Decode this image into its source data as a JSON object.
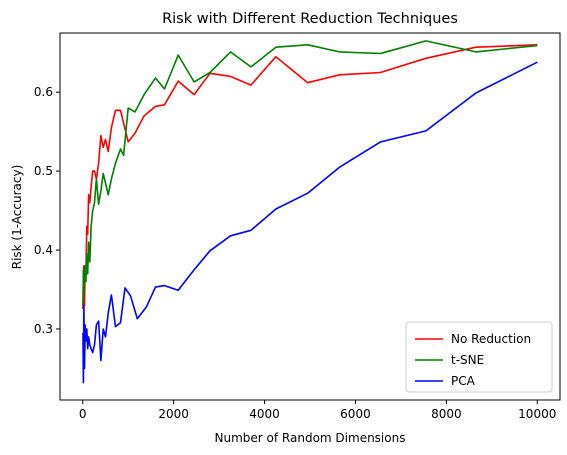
{
  "chart_data": {
    "type": "line",
    "title": "Risk with Different Reduction Techniques",
    "xlabel": "Number of Random Dimensions",
    "ylabel": "Risk (1-Accuracy)",
    "xlim": [
      -500,
      10500
    ],
    "ylim": [
      0.21,
      0.675
    ],
    "xticks": [
      0,
      2000,
      4000,
      6000,
      8000,
      10000
    ],
    "xtick_labels": [
      "0",
      "2000",
      "4000",
      "6000",
      "8000",
      "10000"
    ],
    "yticks": [
      0.3,
      0.4,
      0.5,
      0.6
    ],
    "ytick_labels": [
      "0.3",
      "0.4",
      "0.5",
      "0.6"
    ],
    "grid": false,
    "legend_position": "lower-right",
    "series": [
      {
        "name": "No Reduction",
        "color": "#ff0000",
        "points": [
          [
            5,
            0.325
          ],
          [
            15,
            0.37
          ],
          [
            25,
            0.38
          ],
          [
            40,
            0.33
          ],
          [
            55,
            0.38
          ],
          [
            70,
            0.37
          ],
          [
            90,
            0.43
          ],
          [
            110,
            0.42
          ],
          [
            130,
            0.47
          ],
          [
            155,
            0.46
          ],
          [
            185,
            0.48
          ],
          [
            220,
            0.5
          ],
          [
            260,
            0.5
          ],
          [
            300,
            0.49
          ],
          [
            350,
            0.51
          ],
          [
            400,
            0.545
          ],
          [
            450,
            0.53
          ],
          [
            500,
            0.54
          ],
          [
            560,
            0.525
          ],
          [
            630,
            0.555
          ],
          [
            720,
            0.577
          ],
          [
            830,
            0.577
          ],
          [
            1000,
            0.537
          ],
          [
            1150,
            0.548
          ],
          [
            1350,
            0.57
          ],
          [
            1600,
            0.582
          ],
          [
            1800,
            0.584
          ],
          [
            2100,
            0.614
          ],
          [
            2450,
            0.597
          ],
          [
            2800,
            0.624
          ],
          [
            3250,
            0.62
          ],
          [
            3700,
            0.609
          ],
          [
            4250,
            0.645
          ],
          [
            4950,
            0.612
          ],
          [
            5650,
            0.622
          ],
          [
            6550,
            0.625
          ],
          [
            7550,
            0.643
          ],
          [
            8650,
            0.657
          ],
          [
            10000,
            0.66
          ]
        ]
      },
      {
        "name": "t-SNE",
        "color": "#008000",
        "points": [
          [
            5,
            0.33
          ],
          [
            15,
            0.375
          ],
          [
            25,
            0.345
          ],
          [
            40,
            0.37
          ],
          [
            55,
            0.38
          ],
          [
            70,
            0.36
          ],
          [
            90,
            0.395
          ],
          [
            110,
            0.37
          ],
          [
            130,
            0.41
          ],
          [
            155,
            0.385
          ],
          [
            185,
            0.43
          ],
          [
            220,
            0.45
          ],
          [
            260,
            0.46
          ],
          [
            300,
            0.49
          ],
          [
            350,
            0.458
          ],
          [
            400,
            0.475
          ],
          [
            450,
            0.497
          ],
          [
            500,
            0.485
          ],
          [
            560,
            0.47
          ],
          [
            630,
            0.49
          ],
          [
            720,
            0.51
          ],
          [
            830,
            0.528
          ],
          [
            900,
            0.52
          ],
          [
            1000,
            0.58
          ],
          [
            1150,
            0.575
          ],
          [
            1350,
            0.597
          ],
          [
            1600,
            0.618
          ],
          [
            1800,
            0.604
          ],
          [
            2100,
            0.647
          ],
          [
            2450,
            0.613
          ],
          [
            2800,
            0.625
          ],
          [
            3250,
            0.651
          ],
          [
            3700,
            0.632
          ],
          [
            4250,
            0.657
          ],
          [
            4950,
            0.66
          ],
          [
            5650,
            0.651
          ],
          [
            6550,
            0.649
          ],
          [
            7550,
            0.665
          ],
          [
            8650,
            0.651
          ],
          [
            10000,
            0.659
          ]
        ]
      },
      {
        "name": "PCA",
        "color": "#0000ff",
        "points": [
          [
            5,
            0.295
          ],
          [
            15,
            0.232
          ],
          [
            25,
            0.33
          ],
          [
            40,
            0.25
          ],
          [
            55,
            0.305
          ],
          [
            70,
            0.285
          ],
          [
            90,
            0.3
          ],
          [
            110,
            0.275
          ],
          [
            130,
            0.29
          ],
          [
            155,
            0.28
          ],
          [
            185,
            0.275
          ],
          [
            220,
            0.27
          ],
          [
            260,
            0.28
          ],
          [
            300,
            0.305
          ],
          [
            350,
            0.31
          ],
          [
            400,
            0.26
          ],
          [
            450,
            0.3
          ],
          [
            500,
            0.29
          ],
          [
            560,
            0.32
          ],
          [
            630,
            0.343
          ],
          [
            720,
            0.303
          ],
          [
            830,
            0.308
          ],
          [
            930,
            0.352
          ],
          [
            1050,
            0.342
          ],
          [
            1200,
            0.313
          ],
          [
            1400,
            0.328
          ],
          [
            1600,
            0.353
          ],
          [
            1800,
            0.355
          ],
          [
            2100,
            0.349
          ],
          [
            2450,
            0.375
          ],
          [
            2800,
            0.399
          ],
          [
            3250,
            0.418
          ],
          [
            3700,
            0.425
          ],
          [
            4250,
            0.452
          ],
          [
            4950,
            0.472
          ],
          [
            5650,
            0.505
          ],
          [
            6550,
            0.537
          ],
          [
            7550,
            0.551
          ],
          [
            8650,
            0.599
          ],
          [
            10000,
            0.638
          ]
        ]
      }
    ]
  }
}
